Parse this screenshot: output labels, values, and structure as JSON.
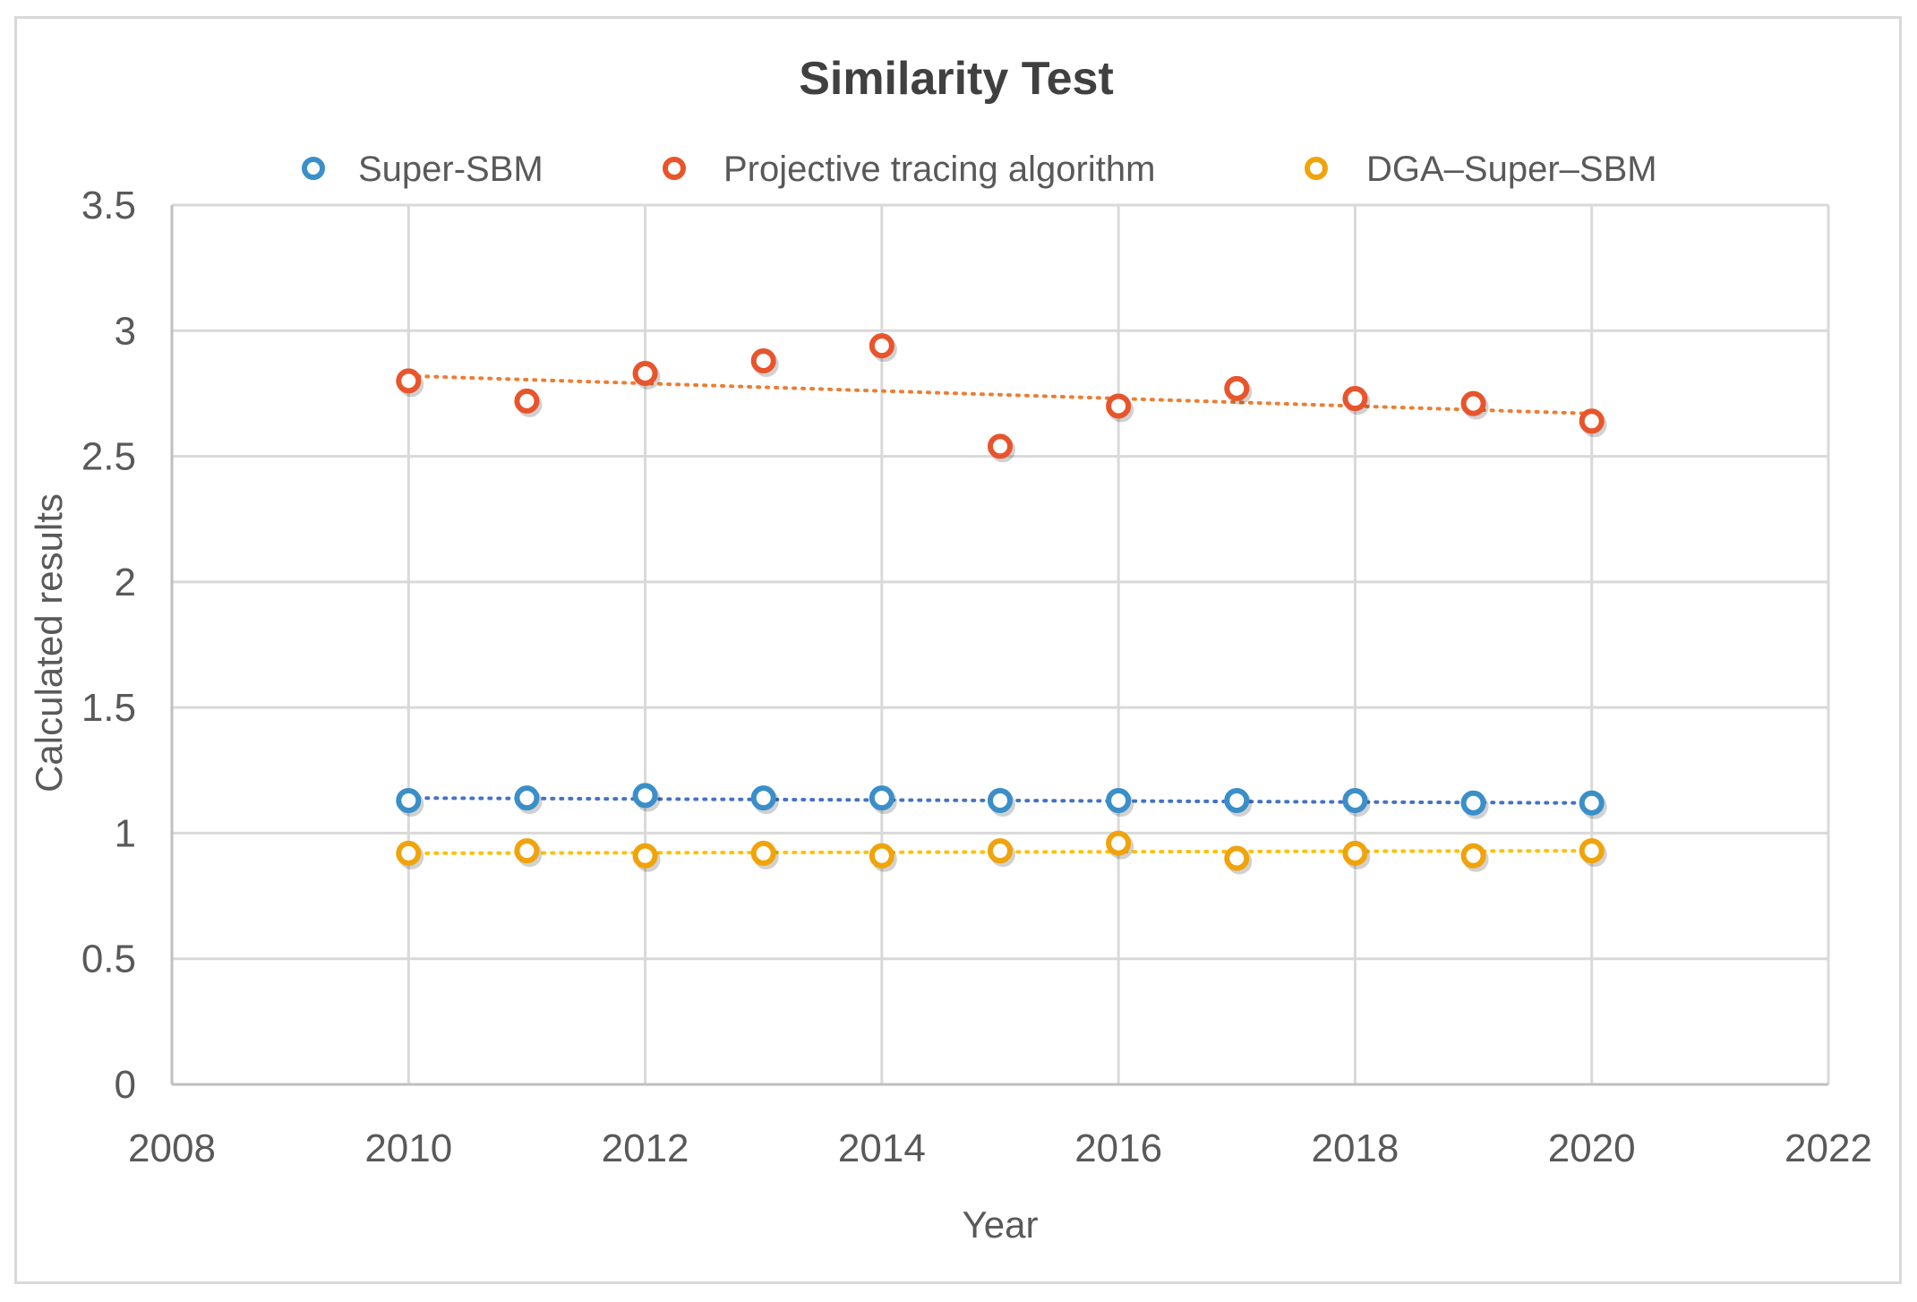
{
  "chart_data": {
    "type": "scatter",
    "title": "Similarity Test",
    "xlabel": "Year",
    "ylabel": "Calculated results",
    "xlim": [
      2008,
      2022
    ],
    "ylim": [
      0,
      3.5
    ],
    "x_ticks": [
      2008,
      2010,
      2012,
      2014,
      2016,
      2018,
      2020,
      2022
    ],
    "y_ticks": [
      0,
      0.5,
      1,
      1.5,
      2,
      2.5,
      3,
      3.5
    ],
    "y_tick_labels": [
      "0",
      "0.5",
      "1",
      "1.5",
      "2",
      "2.5",
      "3",
      "3.5"
    ],
    "grid": true,
    "legend_position": "top",
    "series": [
      {
        "name": "Super-SBM",
        "color": "#3a8fc8",
        "trendline_color": "#4472c4",
        "x": [
          2010,
          2011,
          2012,
          2013,
          2014,
          2015,
          2016,
          2017,
          2018,
          2019,
          2020
        ],
        "y": [
          1.13,
          1.14,
          1.15,
          1.14,
          1.14,
          1.13,
          1.13,
          1.13,
          1.13,
          1.12,
          1.12
        ],
        "trendline": {
          "type": "linear",
          "from": [
            2010,
            1.14
          ],
          "to": [
            2020,
            1.12
          ]
        }
      },
      {
        "name": "Projective tracing algorithm",
        "color": "#e8542b",
        "trendline_color": "#ed7d31",
        "x": [
          2010,
          2011,
          2012,
          2013,
          2014,
          2015,
          2016,
          2017,
          2018,
          2019,
          2020
        ],
        "y": [
          2.8,
          2.72,
          2.83,
          2.88,
          2.94,
          2.54,
          2.7,
          2.77,
          2.73,
          2.71,
          2.64
        ],
        "trendline": {
          "type": "linear",
          "from": [
            2010,
            2.82
          ],
          "to": [
            2020,
            2.67
          ]
        }
      },
      {
        "name": "DGA–Super–SBM",
        "color": "#f0a30a",
        "trendline_color": "#ffc000",
        "x": [
          2010,
          2011,
          2012,
          2013,
          2014,
          2015,
          2016,
          2017,
          2018,
          2019,
          2020
        ],
        "y": [
          0.92,
          0.93,
          0.91,
          0.92,
          0.91,
          0.93,
          0.96,
          0.9,
          0.92,
          0.91,
          0.93
        ],
        "trendline": {
          "type": "linear",
          "from": [
            2010,
            0.92
          ],
          "to": [
            2020,
            0.93
          ]
        }
      }
    ]
  }
}
